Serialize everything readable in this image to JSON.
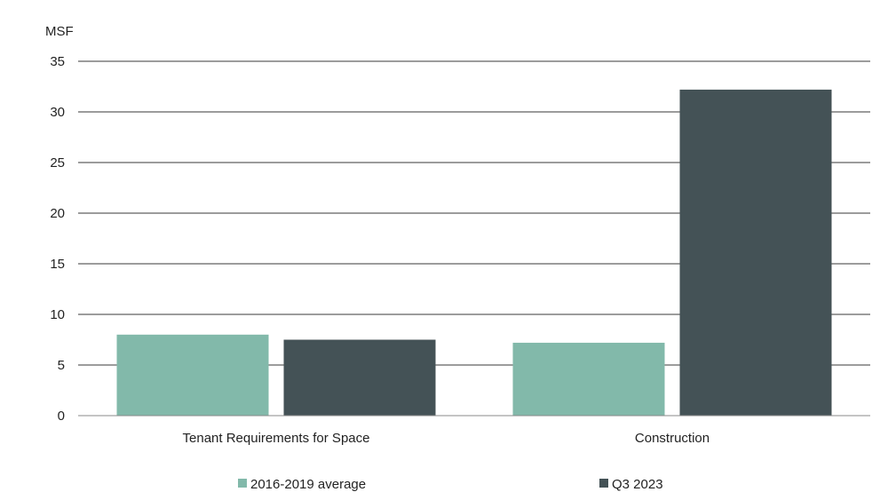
{
  "chart_data": {
    "type": "bar",
    "ylabel": "MSF",
    "ylim": [
      0,
      35
    ],
    "yticks": [
      0,
      5,
      10,
      15,
      20,
      25,
      30,
      35
    ],
    "grid": true,
    "legend_position": "bottom",
    "categories": [
      "Tenant Requirements for Space",
      "Construction"
    ],
    "series": [
      {
        "name": "2016-2019 average",
        "color": "#82b9aa",
        "values": [
          8.0,
          7.2
        ]
      },
      {
        "name": "Q3 2023",
        "color": "#445256",
        "values": [
          7.5,
          32.2
        ]
      }
    ]
  }
}
